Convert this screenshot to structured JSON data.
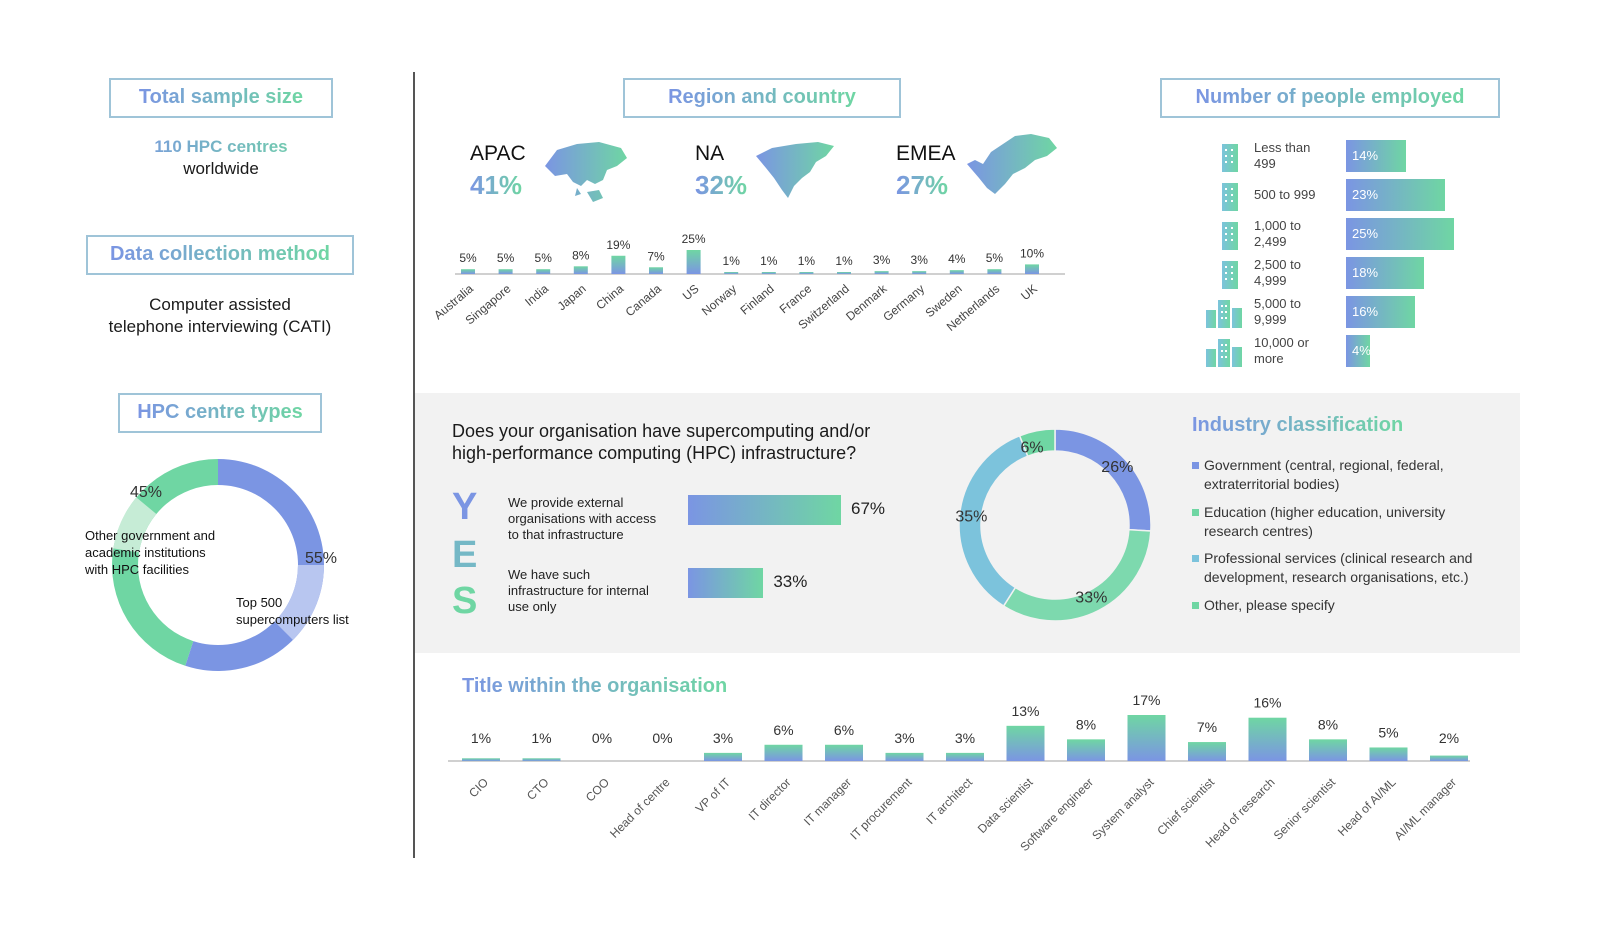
{
  "sample": {
    "title": "Total sample size",
    "count_text": "110 HPC centres",
    "sub_text": "worldwide"
  },
  "method": {
    "title": "Data collection method",
    "line1": "Computer assisted",
    "line2": "telephone interviewing (CATI)"
  },
  "centre_types": {
    "title": "HPC centre types",
    "label_other_1": "Other government and",
    "label_other_2": "academic institutions",
    "label_other_3": "with HPC facilities",
    "label_top_1": "Top 500",
    "label_top_2": "supercomputers list"
  },
  "region": {
    "title": "Region and country",
    "regions": [
      {
        "name": "APAC",
        "pct": "41%"
      },
      {
        "name": "NA",
        "pct": "32%"
      },
      {
        "name": "EMEA",
        "pct": "27%"
      }
    ]
  },
  "employed": {
    "title": "Number of people employed",
    "rows": [
      {
        "label1": "Less than",
        "label2": "499",
        "value": 14,
        "text": "14%"
      },
      {
        "label1": "500 to 999",
        "label2": "",
        "value": 23,
        "text": "23%"
      },
      {
        "label1": "1,000 to",
        "label2": "2,499",
        "value": 25,
        "text": "25%"
      },
      {
        "label1": "2,500 to",
        "label2": "4,999",
        "value": 18,
        "text": "18%"
      },
      {
        "label1": "5,000 to",
        "label2": "9,999",
        "value": 16,
        "text": "16%"
      },
      {
        "label1": "10,000 or",
        "label2": "more",
        "value": 4,
        "text": "4%"
      }
    ]
  },
  "question": {
    "text_line1": "Does your organisation have supercomputing and/or",
    "text_line2": "high-performance computing (HPC) infrastructure?",
    "letters": [
      "Y",
      "E",
      "S"
    ],
    "answers": [
      {
        "label1": "We provide external",
        "label2": "organisations with access",
        "label3": "to that infrastructure",
        "value": 67,
        "text": "67%"
      },
      {
        "label1": "We have such",
        "label2": "infrastructure for internal",
        "label3": "use only",
        "value": 33,
        "text": "33%"
      }
    ]
  },
  "industry": {
    "title": "Industry classification",
    "legend": [
      {
        "line1": "Government (central, regional, federal,",
        "line2": "extraterritorial bodies)",
        "color": "#7b95e3"
      },
      {
        "line1": "Education (higher education, university",
        "line2": "research centres)",
        "color": "#6fd6a3"
      },
      {
        "line1": "Professional services (clinical research and",
        "line2": "development, research organisations, etc.)",
        "color": "#7cc3dc"
      },
      {
        "line1": "Other, please specify",
        "line2": "",
        "color": "#6fd6a3"
      }
    ]
  },
  "title_org": {
    "title": "Title within the organisation"
  },
  "chart_data": [
    {
      "type": "pie",
      "title": "HPC centre types",
      "labels": [
        "Top 500 supercomputers list",
        "Other government and academic institutions with HPC facilities"
      ],
      "values": [
        55,
        45
      ],
      "value_labels": [
        "55%",
        "45%"
      ],
      "colors": [
        "#7b95e3",
        "#6fd6a3"
      ]
    },
    {
      "type": "bar",
      "title": "Region and country",
      "categories": [
        "Australia",
        "Singapore",
        "India",
        "Japan",
        "China",
        "Canada",
        "US",
        "Norway",
        "Finland",
        "France",
        "Switzerland",
        "Denmark",
        "Germany",
        "Sweden",
        "Netherlands",
        "UK"
      ],
      "values": [
        5,
        5,
        5,
        8,
        19,
        7,
        25,
        1,
        1,
        1,
        1,
        3,
        3,
        4,
        5,
        10
      ],
      "value_labels": [
        "5%",
        "5%",
        "5%",
        "8%",
        "19%",
        "7%",
        "25%",
        "1%",
        "1%",
        "1%",
        "1%",
        "3%",
        "3%",
        "4%",
        "5%",
        "10%"
      ]
    },
    {
      "type": "bar",
      "title": "Number of people employed",
      "categories": [
        "Less than 499",
        "500 to 999",
        "1,000 to 2,499",
        "2,500 to 4,999",
        "5,000 to 9,999",
        "10,000 or more"
      ],
      "values": [
        14,
        23,
        25,
        18,
        16,
        4
      ]
    },
    {
      "type": "bar",
      "title": "Does your organisation have supercomputing and/or high-performance computing (HPC) infrastructure?",
      "categories": [
        "We provide external organisations with access to that infrastructure",
        "We have such infrastructure for internal use only"
      ],
      "values": [
        67,
        33
      ]
    },
    {
      "type": "pie",
      "title": "Industry classification",
      "labels": [
        "Government (central, regional, federal, extraterritorial bodies)",
        "Education (higher education, university research centres)",
        "Professional services (clinical research and development, research organisations, etc.)",
        "Other, please specify"
      ],
      "values": [
        26,
        33,
        35,
        6
      ],
      "value_labels": [
        "26%",
        "33%",
        "35%",
        "6%"
      ],
      "colors": [
        "#7b95e3",
        "#7dd9ae",
        "#7cc3dc",
        "#6fd6a3"
      ]
    },
    {
      "type": "bar",
      "title": "Title within the organisation",
      "categories": [
        "CIO",
        "CTO",
        "COO",
        "Head of centre",
        "VP of IT",
        "IT director",
        "IT manager",
        "IT procurement",
        "IT architect",
        "Data scientist",
        "Software engineer",
        "System analyst",
        "Chief scientist",
        "Head of research",
        "Senior scientist",
        "Head of AI/ML",
        "AI/ML manager"
      ],
      "values": [
        1,
        1,
        0,
        0,
        3,
        6,
        6,
        3,
        3,
        13,
        8,
        17,
        7,
        16,
        8,
        5,
        2
      ],
      "value_labels": [
        "1%",
        "1%",
        "0%",
        "0%",
        "3%",
        "6%",
        "6%",
        "3%",
        "3%",
        "13%",
        "8%",
        "17%",
        "7%",
        "16%",
        "8%",
        "5%",
        "2%"
      ]
    }
  ]
}
